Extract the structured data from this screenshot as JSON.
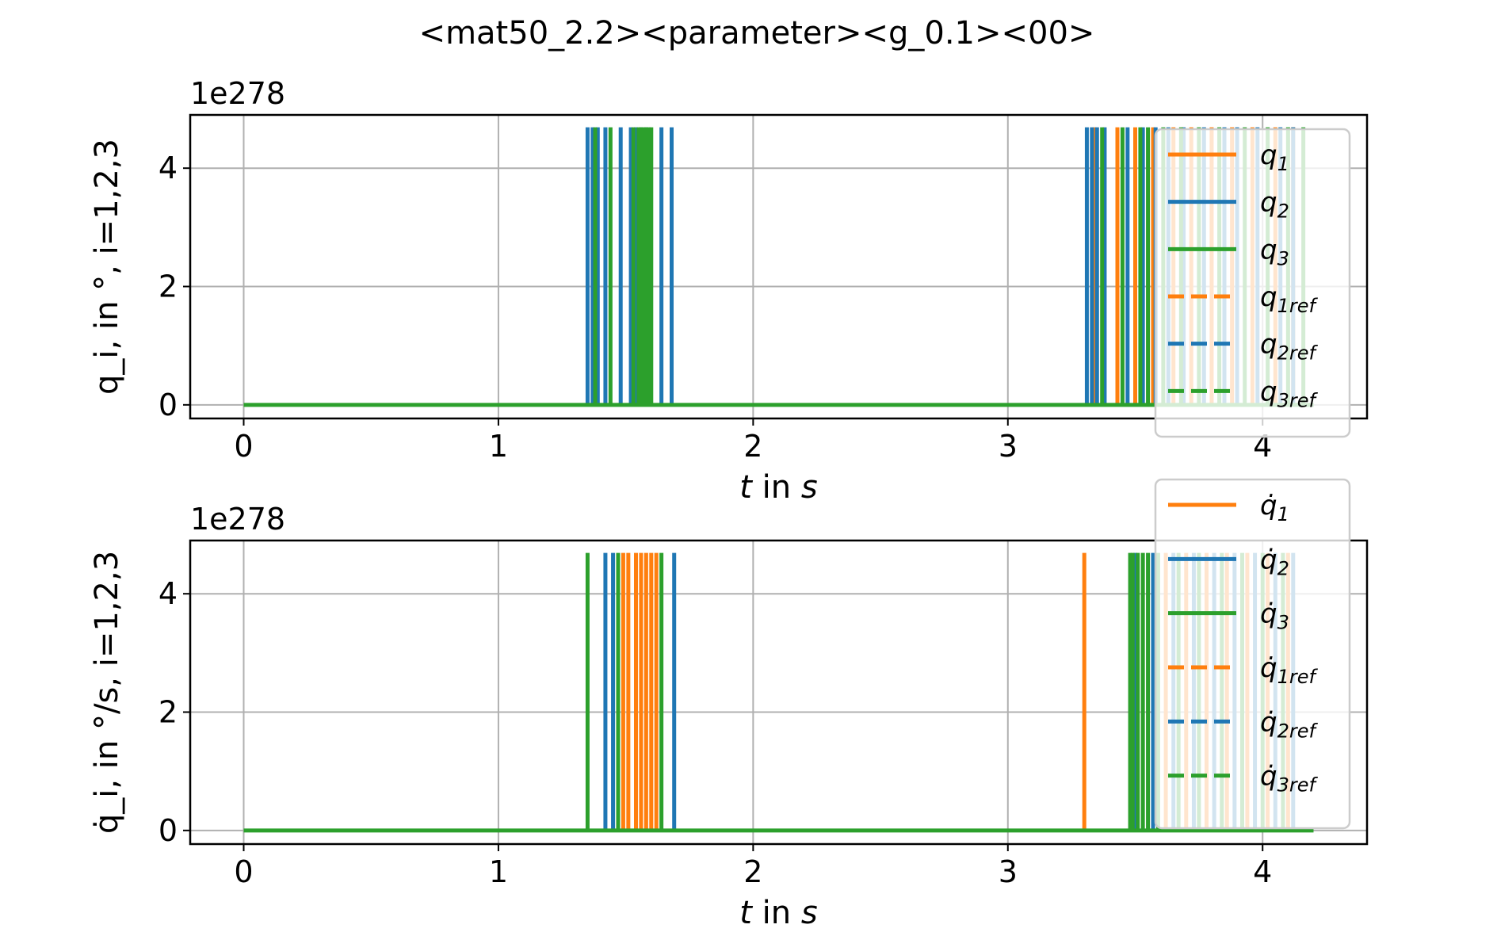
{
  "figure": {
    "title": "<mat50_2.2><parameter><g_0.1><00>"
  },
  "colors": {
    "q1": "#ff7f0e",
    "q2": "#1f77b4",
    "q3": "#2ca02c",
    "grid": "#b0b0b0",
    "legend_border": "#cccccc"
  },
  "chart_data": [
    {
      "type": "line",
      "xlabel": "t in s",
      "ylabel": "q_i,  in °,  i=1,2,3",
      "offset_text": "1e278",
      "xlim": [
        -0.21,
        4.41
      ],
      "ylim": [
        -0.23,
        4.9
      ],
      "xticks": [
        0,
        1,
        2,
        3,
        4
      ],
      "yticks": [
        0,
        2,
        4
      ],
      "grid": true,
      "legend_position": "right",
      "baseline_x_range": [
        0,
        4.2
      ],
      "spike_height": 4.69,
      "legend": [
        {
          "name": "q1",
          "main": "q",
          "sub": "1",
          "style": "solid",
          "color_key": "q1"
        },
        {
          "name": "q2",
          "main": "q",
          "sub": "2",
          "style": "solid",
          "color_key": "q2"
        },
        {
          "name": "q3",
          "main": "q",
          "sub": "3",
          "style": "solid",
          "color_key": "q3"
        },
        {
          "name": "q1ref",
          "main": "q",
          "sub": "1ref",
          "style": "dashed",
          "color_key": "q1"
        },
        {
          "name": "q2ref",
          "main": "q",
          "sub": "2ref",
          "style": "dashed",
          "color_key": "q2"
        },
        {
          "name": "q3ref",
          "main": "q",
          "sub": "3ref",
          "style": "dashed",
          "color_key": "q3"
        }
      ],
      "series": [
        {
          "name": "q1",
          "color_key": "q1",
          "spikes_x": [
            3.34,
            3.43,
            3.5,
            3.57,
            3.65,
            3.72,
            3.8,
            3.88,
            3.96,
            4.05,
            4.12
          ]
        },
        {
          "name": "q2",
          "color_key": "q2",
          "spikes_x": [
            1.35,
            1.37,
            1.39,
            1.42,
            1.48,
            1.52,
            1.54,
            1.56,
            1.58,
            1.64,
            1.68,
            3.31,
            3.33,
            3.35,
            3.38,
            3.47,
            3.53,
            3.58,
            3.63,
            3.69,
            3.77,
            3.85,
            3.9,
            3.98,
            4.07,
            4.12
          ]
        },
        {
          "name": "q3",
          "color_key": "q3",
          "spikes_x": [
            1.38,
            1.44,
            1.53,
            1.55,
            1.56,
            1.57,
            1.58,
            1.59,
            1.6,
            3.37,
            3.45,
            3.52,
            3.55,
            3.61,
            3.68,
            3.75,
            3.83,
            3.93,
            4.02,
            4.1,
            4.16
          ]
        }
      ]
    },
    {
      "type": "line",
      "xlabel": "t in s",
      "ylabel": "q̇_i, in °/s,  i=1,2,3",
      "offset_text": "1e278",
      "xlim": [
        -0.21,
        4.41
      ],
      "ylim": [
        -0.23,
        4.9
      ],
      "xticks": [
        0,
        1,
        2,
        3,
        4
      ],
      "yticks": [
        0,
        2,
        4
      ],
      "grid": true,
      "legend_position": "right",
      "baseline_x_range": [
        0,
        4.2
      ],
      "spike_height": 4.69,
      "legend": [
        {
          "name": "q̇1",
          "main": "q̇",
          "sub": "1",
          "style": "solid",
          "color_key": "q1"
        },
        {
          "name": "q̇2",
          "main": "q̇",
          "sub": "2",
          "style": "solid",
          "color_key": "q2"
        },
        {
          "name": "q̇3",
          "main": "q̇",
          "sub": "3",
          "style": "solid",
          "color_key": "q3"
        },
        {
          "name": "q̇1ref",
          "main": "q̇",
          "sub": "1ref",
          "style": "dashed",
          "color_key": "q1"
        },
        {
          "name": "q̇2ref",
          "main": "q̇",
          "sub": "2ref",
          "style": "dashed",
          "color_key": "q2"
        },
        {
          "name": "q̇3ref",
          "main": "q̇",
          "sub": "3ref",
          "style": "dashed",
          "color_key": "q3"
        }
      ],
      "series": [
        {
          "name": "q̇1",
          "color_key": "q1",
          "spikes_x": [
            1.49,
            1.51,
            1.54,
            1.56,
            1.58,
            1.6,
            1.62,
            3.3,
            3.62,
            3.7,
            3.78,
            3.86,
            3.94,
            4.02,
            4.1
          ]
        },
        {
          "name": "q̇2",
          "color_key": "q2",
          "spikes_x": [
            1.42,
            1.45,
            1.69,
            3.5,
            3.57,
            3.65,
            3.73,
            3.81,
            3.89,
            3.97,
            4.05,
            4.12
          ]
        },
        {
          "name": "q̇3",
          "color_key": "q3",
          "spikes_x": [
            1.35,
            1.47,
            1.64,
            3.48,
            3.49,
            3.51,
            3.53,
            3.55,
            3.59,
            3.67,
            3.75,
            3.84,
            3.92,
            4.0,
            4.08
          ]
        }
      ]
    }
  ]
}
